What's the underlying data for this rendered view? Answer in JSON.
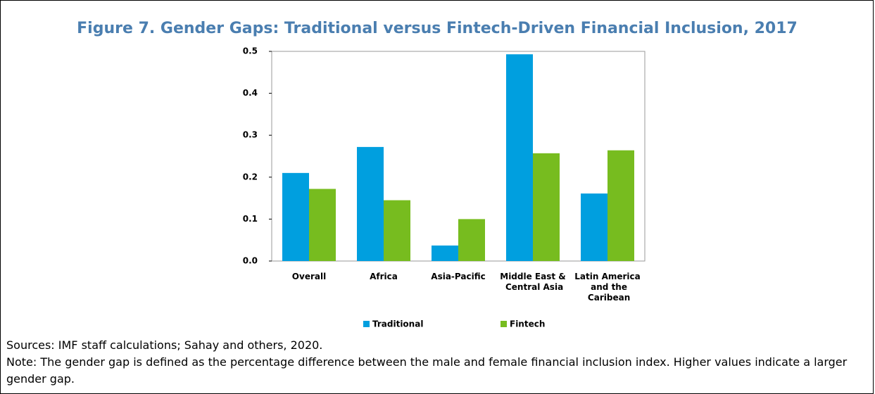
{
  "chart_data": {
    "type": "bar",
    "title": "Figure 7. Gender Gaps: Traditional versus Fintech-Driven Financial Inclusion, 2017",
    "categories": [
      "Overall",
      "Africa",
      "Asia-Pacific",
      "Middle East & Central Asia",
      "Latin America and the Caribean"
    ],
    "series": [
      {
        "name": "Traditional",
        "color": "#009fdf",
        "values": [
          0.21,
          0.272,
          0.037,
          0.493,
          0.161
        ]
      },
      {
        "name": "Fintech",
        "color": "#77bc1f",
        "values": [
          0.172,
          0.145,
          0.1,
          0.257,
          0.264
        ]
      }
    ],
    "ylim": [
      0,
      0.5
    ],
    "yticks": [
      {
        "value": 0,
        "label": "0.0"
      },
      0.1,
      0.2,
      0.3,
      0.4,
      0.5
    ],
    "grid": false,
    "legend": "bottom",
    "sources": "Sources: IMF staff calculations; Sahay and others, 2020.",
    "note": "Note: The gender gap is defined as the percentage difference between the male and female financial inclusion index. Higher values indicate a larger gender gap."
  }
}
